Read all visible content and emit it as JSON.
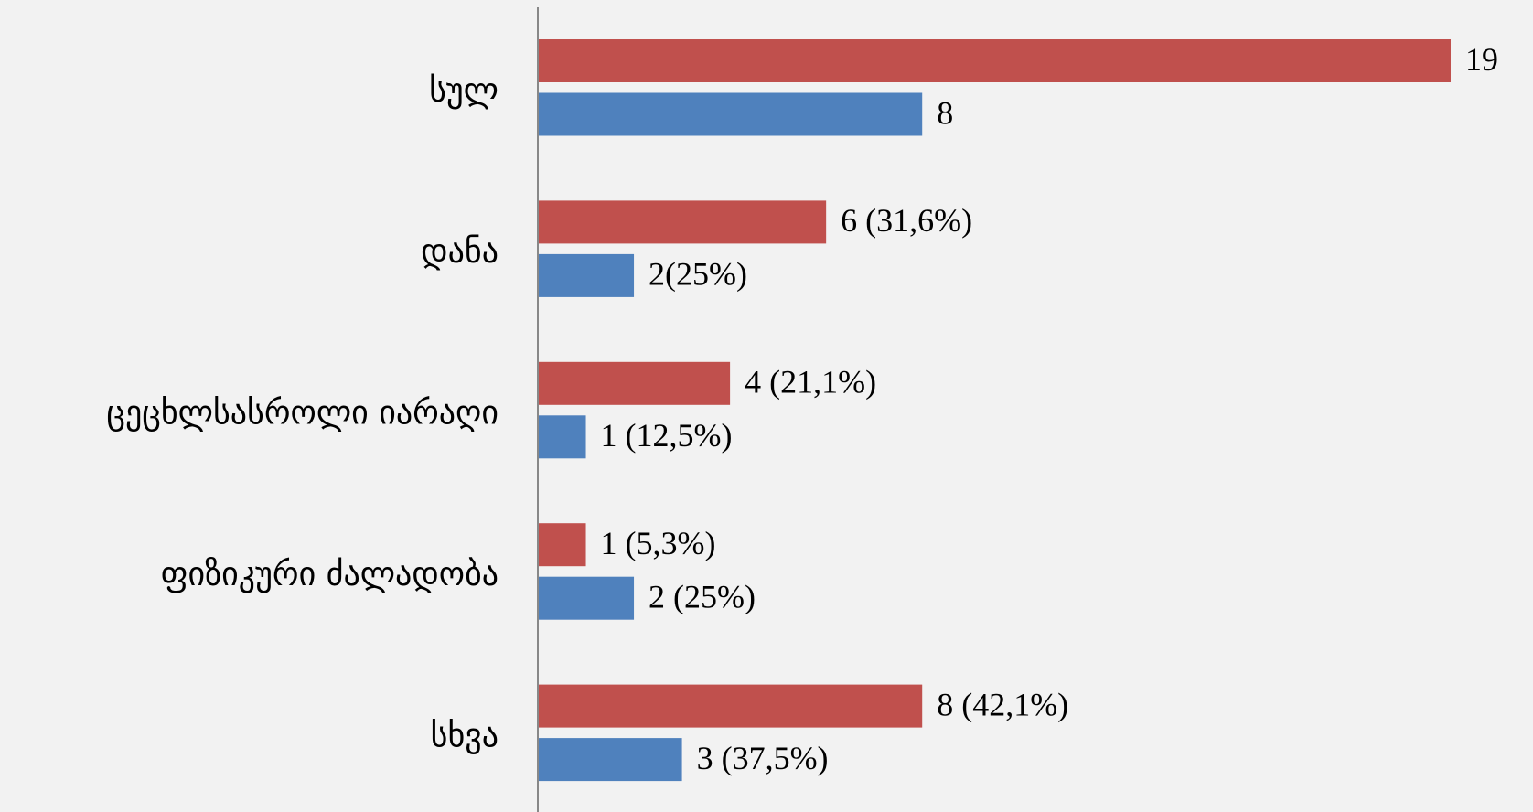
{
  "chart_data": {
    "type": "hbar",
    "categories": [
      "სულ",
      "დანა",
      "ცეცხლსასროლი იარაღი",
      "ფიზიკური ძალადობა",
      "სხვა"
    ],
    "series": [
      {
        "color": "#c0504d",
        "values": [
          19,
          6,
          4,
          1,
          8
        ],
        "value_labels": [
          "19",
          "6 (31,6%)",
          "4 (21,1%)",
          "1 (5,3%)",
          "8 (42,1%)"
        ]
      },
      {
        "color": "#4f81bd",
        "values": [
          8,
          2,
          1,
          2,
          3
        ],
        "value_labels": [
          "8",
          "2(25%)",
          "1 (12,5%)",
          "2 (25%)",
          "3 (37,5%)"
        ]
      }
    ]
  }
}
